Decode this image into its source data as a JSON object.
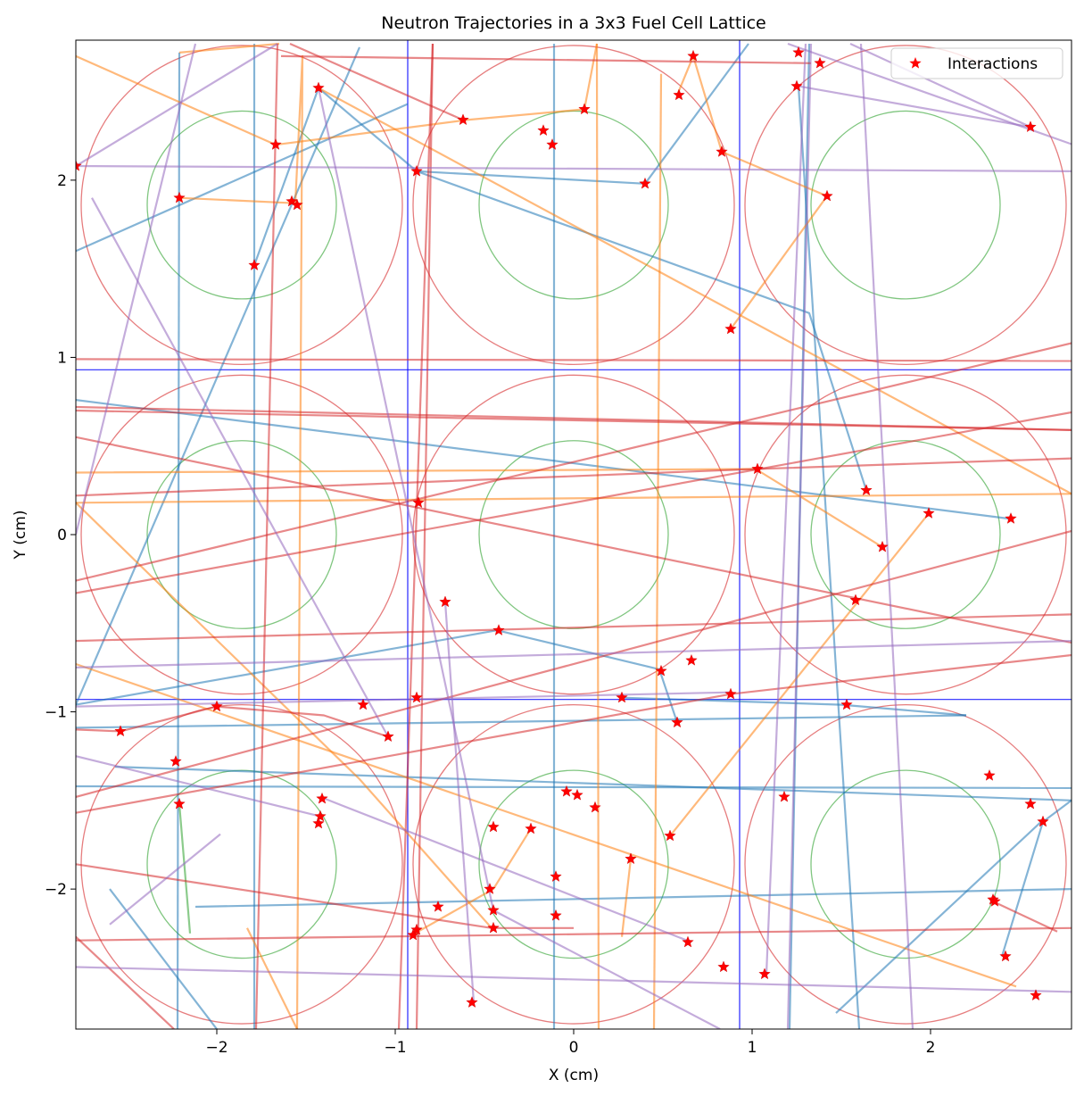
{
  "chart_data": {
    "type": "line",
    "title": "Neutron Trajectories in a 3x3 Fuel Cell Lattice",
    "xlabel": "X (cm)",
    "ylabel": "Y (cm)",
    "xlim": [
      -2.79,
      2.79
    ],
    "ylim": [
      -2.79,
      2.79
    ],
    "xticks": [
      -2,
      -1,
      0,
      1,
      2
    ],
    "yticks": [
      -2,
      -1,
      0,
      1,
      2
    ],
    "xtick_labels": [
      "−2",
      "−1",
      "0",
      "1",
      "2"
    ],
    "ytick_labels": [
      "−2",
      "−1",
      "0",
      "1",
      "2"
    ],
    "grid": false,
    "legend": {
      "placement": "top-right",
      "entries": [
        {
          "label": "Interactions",
          "marker": "star",
          "color": "#ff0000"
        }
      ]
    },
    "cell_boundaries": {
      "x": [
        -0.93,
        0.93
      ],
      "y": [
        -0.93,
        0.93
      ],
      "color": "#0000ff"
    },
    "cells": {
      "centers": [
        [
          -1.86,
          1.86
        ],
        [
          0,
          1.86
        ],
        [
          1.86,
          1.86
        ],
        [
          -1.86,
          0
        ],
        [
          0,
          0
        ],
        [
          1.86,
          0
        ],
        [
          -1.86,
          -1.86
        ],
        [
          0,
          -1.86
        ],
        [
          1.86,
          -1.86
        ]
      ],
      "fuel_radius": 0.53,
      "outer_radius": 0.9,
      "fuel_color": "#2ca02c",
      "outer_color": "#d62728"
    },
    "series": [
      {
        "color": "#1f77b4",
        "segments": [
          [
            [
              -1.79,
              1.52
            ],
            [
              -1.43,
              2.52
            ],
            [
              -0.88,
              2.05
            ],
            [
              0.4,
              1.98
            ]
          ],
          [
            [
              -2.79,
              1.6
            ],
            [
              -0.93,
              2.43
            ]
          ],
          [
            [
              -2.21,
              2.72
            ],
            [
              -2.22,
              -2.79
            ]
          ],
          [
            [
              -1.79,
              2.77
            ],
            [
              -1.79,
              -2.79
            ]
          ],
          [
            [
              -0.88,
              2.05
            ],
            [
              1.32,
              1.25
            ],
            [
              1.64,
              0.25
            ]
          ],
          [
            [
              -0.11,
              2.77
            ],
            [
              -0.11,
              -2.79
            ]
          ],
          [
            [
              0.4,
              1.98
            ],
            [
              0.98,
              2.77
            ]
          ],
          [
            [
              1.26,
              2.53
            ],
            [
              1.6,
              -2.79
            ]
          ],
          [
            [
              -2.79,
              0.76
            ],
            [
              2.44,
              0.09
            ]
          ],
          [
            [
              -2.79,
              -0.96
            ],
            [
              -0.43,
              -0.54
            ],
            [
              0.48,
              -0.76
            ],
            [
              0.58,
              -1.06
            ]
          ],
          [
            [
              -2.79,
              -1.09
            ],
            [
              2.2,
              -1.02
            ]
          ],
          [
            [
              -2.79,
              -1.42
            ],
            [
              2.79,
              -1.43
            ]
          ],
          [
            [
              -2.57,
              -1.31
            ],
            [
              2.79,
              -1.5
            ]
          ],
          [
            [
              -2.12,
              -2.1
            ],
            [
              2.79,
              -2.0
            ]
          ],
          [
            [
              -2.6,
              -2.0
            ],
            [
              -2.0,
              -2.79
            ]
          ],
          [
            [
              1.47,
              -2.7
            ],
            [
              2.62,
              -1.62
            ]
          ],
          [
            [
              -2.79,
              -0.96
            ],
            [
              -1.2,
              2.75
            ]
          ],
          [
            [
              1.21,
              -2.79
            ],
            [
              1.32,
              2.77
            ]
          ],
          [
            [
              0.27,
              -0.92
            ],
            [
              1.5,
              -0.96
            ],
            [
              2.2,
              -1.02
            ]
          ],
          [
            [
              2.4,
              -2.38
            ],
            [
              2.63,
              -1.62
            ],
            [
              2.79,
              -1.5
            ]
          ]
        ]
      },
      {
        "color": "#ff7f0e",
        "segments": [
          [
            [
              -2.79,
              2.7
            ],
            [
              -1.67,
              2.2
            ],
            [
              -0.6,
              2.34
            ],
            [
              0.06,
              2.4
            ],
            [
              0.13,
              2.77
            ]
          ],
          [
            [
              -2.21,
              1.9
            ],
            [
              -1.56,
              1.87
            ],
            [
              -1.52,
              2.7
            ],
            [
              -1.55,
              -2.79
            ]
          ],
          [
            [
              -1.43,
              2.52
            ],
            [
              2.79,
              0.23
            ]
          ],
          [
            [
              0.13,
              2.77
            ],
            [
              0.14,
              -2.79
            ]
          ],
          [
            [
              0.49,
              2.6
            ],
            [
              0.45,
              -2.79
            ]
          ],
          [
            [
              0.67,
              2.7
            ],
            [
              0.83,
              2.16
            ],
            [
              1.42,
              1.91
            ],
            [
              0.88,
              1.16
            ]
          ],
          [
            [
              0.58,
              2.48
            ],
            [
              0.67,
              2.7
            ]
          ],
          [
            [
              -2.79,
              0.35
            ],
            [
              1.02,
              0.37
            ],
            [
              1.73,
              -0.07
            ]
          ],
          [
            [
              -2.79,
              0.18
            ],
            [
              2.79,
              0.23
            ]
          ],
          [
            [
              -2.79,
              -0.73
            ],
            [
              2.48,
              -2.55
            ]
          ],
          [
            [
              -2.79,
              0.18
            ],
            [
              -1.2,
              -1.38
            ],
            [
              -0.46,
              -2.22
            ]
          ],
          [
            [
              0.54,
              -1.7
            ],
            [
              1.99,
              0.12
            ]
          ],
          [
            [
              -0.24,
              -1.66
            ],
            [
              -0.45,
              -2.0
            ],
            [
              -0.89,
              -2.25
            ]
          ],
          [
            [
              0.32,
              -1.83
            ],
            [
              0.27,
              -2.27
            ]
          ],
          [
            [
              -1.83,
              -2.22
            ],
            [
              -1.55,
              -2.79
            ]
          ],
          [
            [
              -1.65,
              2.77
            ],
            [
              -2.21,
              2.72
            ]
          ]
        ]
      },
      {
        "color": "#2ca02c",
        "segments": [
          [
            [
              -2.21,
              -1.52
            ],
            [
              -2.15,
              -2.25
            ]
          ]
        ]
      },
      {
        "color": "#d62728",
        "segments": [
          [
            [
              -2.79,
              2.08
            ],
            [
              -2.79,
              2.08
            ]
          ],
          [
            [
              -1.66,
              2.77
            ],
            [
              -1.78,
              -2.79
            ]
          ],
          [
            [
              -1.59,
              2.77
            ],
            [
              -0.62,
              2.34
            ]
          ],
          [
            [
              -0.79,
              2.77
            ],
            [
              -0.88,
              -2.79
            ]
          ],
          [
            [
              -0.79,
              2.77
            ],
            [
              -0.98,
              -2.79
            ]
          ],
          [
            [
              -2.79,
              0.99
            ],
            [
              2.79,
              0.98
            ]
          ],
          [
            [
              -2.79,
              0.72
            ],
            [
              2.79,
              0.59
            ]
          ],
          [
            [
              -2.79,
              0.7
            ],
            [
              2.79,
              0.59
            ]
          ],
          [
            [
              -2.79,
              0.55
            ],
            [
              2.79,
              -0.61
            ]
          ],
          [
            [
              -2.79,
              0.22
            ],
            [
              1.02,
              0.37
            ],
            [
              2.79,
              0.43
            ]
          ],
          [
            [
              -2.79,
              -0.33
            ],
            [
              2.79,
              0.69
            ]
          ],
          [
            [
              -2.79,
              -0.26
            ],
            [
              2.79,
              1.08
            ]
          ],
          [
            [
              -2.79,
              -0.6
            ],
            [
              2.79,
              -0.45
            ]
          ],
          [
            [
              -2.79,
              -1.48
            ],
            [
              2.79,
              0.02
            ]
          ],
          [
            [
              -2.79,
              -1.57
            ],
            [
              0.88,
              -0.9
            ],
            [
              2.79,
              -0.68
            ]
          ],
          [
            [
              -2.79,
              -2.29
            ],
            [
              2.79,
              -2.22
            ]
          ],
          [
            [
              -2.79,
              -1.86
            ],
            [
              -0.46,
              -2.22
            ],
            [
              0.0,
              -2.22
            ]
          ],
          [
            [
              -2.79,
              -1.1
            ],
            [
              -2.54,
              -1.11
            ],
            [
              -2.0,
              -0.97
            ],
            [
              -1.4,
              -1.02
            ],
            [
              -1.04,
              -1.14
            ]
          ],
          [
            [
              -2.79,
              -2.27
            ],
            [
              -2.24,
              -2.79
            ]
          ],
          [
            [
              -1.64,
              2.7
            ],
            [
              1.33,
              2.66
            ],
            [
              1.33,
              2.66
            ]
          ],
          [
            [
              2.35,
              -2.07
            ],
            [
              2.71,
              -2.24
            ]
          ],
          [
            [
              -0.9,
              0.18
            ],
            [
              -0.9,
              0.18
            ]
          ]
        ]
      },
      {
        "color": "#9467bd",
        "segments": [
          [
            [
              -2.79,
              2.08
            ],
            [
              -1.66,
              2.77
            ]
          ],
          [
            [
              -2.79,
              0.0
            ],
            [
              -2.12,
              2.77
            ]
          ],
          [
            [
              -2.7,
              1.9
            ],
            [
              -1.04,
              -1.14
            ]
          ],
          [
            [
              -0.72,
              -0.38
            ],
            [
              -0.56,
              -2.64
            ]
          ],
          [
            [
              1.26,
              2.53
            ],
            [
              2.56,
              2.3
            ],
            [
              1.55,
              2.77
            ]
          ],
          [
            [
              -1.43,
              2.52
            ],
            [
              -0.45,
              -2.12
            ],
            [
              0.82,
              -2.79
            ]
          ],
          [
            [
              1.2,
              2.77
            ],
            [
              2.8,
              2.2
            ]
          ],
          [
            [
              -2.79,
              -0.75
            ],
            [
              2.79,
              -0.6
            ]
          ],
          [
            [
              -2.79,
              -1.25
            ],
            [
              -1.42,
              -1.59
            ]
          ],
          [
            [
              -1.42,
              -1.48
            ],
            [
              0.66,
              -2.3
            ]
          ],
          [
            [
              -2.79,
              -2.44
            ],
            [
              2.79,
              -2.58
            ]
          ],
          [
            [
              -2.79,
              -0.97
            ],
            [
              0.88,
              -0.89
            ]
          ],
          [
            [
              -2.6,
              -2.2
            ],
            [
              -1.98,
              -1.69
            ]
          ],
          [
            [
              1.08,
              -2.48
            ],
            [
              1.3,
              2.77
            ]
          ],
          [
            [
              1.2,
              -2.79
            ],
            [
              1.33,
              2.77
            ]
          ],
          [
            [
              1.9,
              -2.79
            ],
            [
              1.61,
              2.77
            ]
          ],
          [
            [
              -2.79,
              2.08
            ],
            [
              2.79,
              2.05
            ]
          ]
        ]
      }
    ],
    "interactions": [
      [
        -2.79,
        2.08
      ],
      [
        -2.21,
        1.9
      ],
      [
        -1.67,
        2.2
      ],
      [
        -1.43,
        2.52
      ],
      [
        -1.58,
        1.88
      ],
      [
        -1.55,
        1.86
      ],
      [
        -1.79,
        1.52
      ],
      [
        -0.88,
        2.05
      ],
      [
        -0.62,
        2.34
      ],
      [
        -0.17,
        2.28
      ],
      [
        -0.12,
        2.2
      ],
      [
        0.06,
        2.4
      ],
      [
        0.4,
        1.98
      ],
      [
        0.59,
        2.48
      ],
      [
        0.67,
        2.7
      ],
      [
        0.83,
        2.16
      ],
      [
        0.88,
        1.16
      ],
      [
        1.26,
        2.72
      ],
      [
        1.38,
        2.66
      ],
      [
        1.25,
        2.53
      ],
      [
        1.42,
        1.91
      ],
      [
        2.56,
        2.3
      ],
      [
        1.03,
        0.37
      ],
      [
        1.64,
        0.25
      ],
      [
        1.99,
        0.12
      ],
      [
        2.45,
        0.09
      ],
      [
        1.73,
        -0.07
      ],
      [
        1.58,
        -0.37
      ],
      [
        -0.87,
        0.18
      ],
      [
        -0.72,
        -0.38
      ],
      [
        -0.42,
        -0.54
      ],
      [
        0.49,
        -0.77
      ],
      [
        0.66,
        -0.71
      ],
      [
        0.88,
        -0.9
      ],
      [
        0.27,
        -0.92
      ],
      [
        0.58,
        -1.06
      ],
      [
        1.53,
        -0.96
      ],
      [
        -0.88,
        -0.92
      ],
      [
        -1.18,
        -0.96
      ],
      [
        -1.04,
        -1.14
      ],
      [
        -2.0,
        -0.97
      ],
      [
        -2.54,
        -1.11
      ],
      [
        -2.23,
        -1.28
      ],
      [
        -2.21,
        -1.52
      ],
      [
        -1.41,
        -1.49
      ],
      [
        -1.42,
        -1.59
      ],
      [
        -1.43,
        -1.63
      ],
      [
        -0.45,
        -1.65
      ],
      [
        -0.24,
        -1.66
      ],
      [
        -0.04,
        -1.45
      ],
      [
        0.02,
        -1.47
      ],
      [
        0.12,
        -1.54
      ],
      [
        0.54,
        -1.7
      ],
      [
        0.32,
        -1.83
      ],
      [
        -0.1,
        -1.93
      ],
      [
        -0.47,
        -2.0
      ],
      [
        -0.45,
        -2.12
      ],
      [
        -0.76,
        -2.1
      ],
      [
        -0.1,
        -2.15
      ],
      [
        -0.45,
        -2.22
      ],
      [
        -0.88,
        -2.23
      ],
      [
        -0.9,
        -2.26
      ],
      [
        -0.57,
        -2.64
      ],
      [
        0.64,
        -2.3
      ],
      [
        0.84,
        -2.44
      ],
      [
        1.07,
        -2.48
      ],
      [
        1.18,
        -1.48
      ],
      [
        2.33,
        -1.36
      ],
      [
        2.56,
        -1.52
      ],
      [
        2.63,
        -1.62
      ],
      [
        2.35,
        -2.06
      ],
      [
        2.36,
        -2.07
      ],
      [
        2.42,
        -2.38
      ],
      [
        2.59,
        -2.6
      ]
    ]
  }
}
